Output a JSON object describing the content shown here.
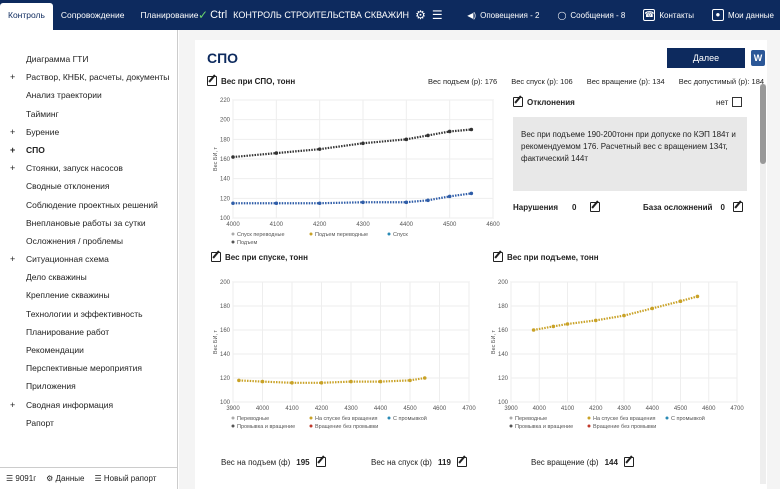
{
  "topbar": {
    "tabs": [
      "Контроль",
      "Сопровождение",
      "Планирование"
    ],
    "brand_logo": "Ctrl",
    "brand_title": "КОНТРОЛЬ СТРОИТЕЛЬСТВА СКВАЖИН",
    "alerts": "Оповещения - 2",
    "messages": "Сообщения - 8",
    "contacts": "Контакты",
    "profile": "Мои данные"
  },
  "sidebar": {
    "items": [
      {
        "label": "Диаграмма ГТИ",
        "plus": ""
      },
      {
        "label": "Раствор, КНБК, расчеты, документы",
        "plus": "+"
      },
      {
        "label": "Анализ траектории",
        "plus": ""
      },
      {
        "label": "Тайминг",
        "plus": ""
      },
      {
        "label": "Бурение",
        "plus": "+"
      },
      {
        "label": "СПО",
        "plus": "+"
      },
      {
        "label": "Стоянки, запуск насосов",
        "plus": "+"
      },
      {
        "label": "Сводные отклонения",
        "plus": ""
      },
      {
        "label": "Соблюдение проектных решений",
        "plus": ""
      },
      {
        "label": "Внеплановые работы за сутки",
        "plus": ""
      },
      {
        "label": "Осложнения / проблемы",
        "plus": ""
      },
      {
        "label": "Ситуационная схема",
        "plus": "+"
      },
      {
        "label": "Дело скважины",
        "plus": ""
      },
      {
        "label": "Крепление скважины",
        "plus": ""
      },
      {
        "label": "Технологии и эффективность",
        "plus": ""
      },
      {
        "label": "Планирование работ",
        "plus": ""
      },
      {
        "label": "Рекомендации",
        "plus": ""
      },
      {
        "label": "Перспективные мероприятия",
        "plus": ""
      },
      {
        "label": "Приложения",
        "plus": ""
      },
      {
        "label": "Сводная информация",
        "plus": "+"
      },
      {
        "label": "Рапорт",
        "plus": ""
      }
    ],
    "footer": {
      "well": "9091г",
      "data": "Данные",
      "report": "Новый рапорт"
    }
  },
  "main": {
    "title": "СПО",
    "next_button": "Далее",
    "word_icon": "W",
    "chart1_title": "Вес при СПО, тонн",
    "weights": [
      "Вес подъем (р): 176",
      "Вес спуск (р): 106",
      "Вес вращение (р): 134",
      "Вес допустимый (р): 184"
    ],
    "deviations_title": "Отклонения",
    "deviations_no": "нет",
    "deviations_text": "Вес при подъеме 190-200тонн при допуске по КЭП 184т и рекомендуемом 176. Расчетный вес с вращением 134т, фактический 144т",
    "violations_label": "Нарушения",
    "violations_value": "0",
    "base_label": "База осложнений",
    "base_value": "0",
    "chart2_title": "Вес при спуске, тонн",
    "chart3_title": "Вес при подъеме, тонн",
    "fact_up_label": "Вес на подъем (ф)",
    "fact_up_value": "195",
    "fact_down_label": "Вес на спуск (ф)",
    "fact_down_value": "119",
    "fact_rot_label": "Вес вращение (ф)",
    "fact_rot_value": "144"
  },
  "chart_data": [
    {
      "type": "scatter",
      "title": "Вес при СПО, тонн",
      "ylabel": "Вес БИ, т",
      "xlim": [
        4000,
        4600
      ],
      "ylim": [
        100,
        220
      ],
      "xticks": [
        4000,
        4100,
        4200,
        4300,
        4400,
        4500,
        4600
      ],
      "yticks": [
        100,
        120,
        140,
        160,
        180,
        200,
        220
      ],
      "legend": [
        "Спуск переводные",
        "Подъем переводные",
        "Спуск",
        "Подъем"
      ],
      "series": [
        {
          "name": "Подъем",
          "color": "#333333",
          "x": [
            4000,
            4100,
            4200,
            4300,
            4400,
            4450,
            4500,
            4550
          ],
          "y": [
            162,
            166,
            170,
            176,
            180,
            184,
            188,
            190
          ]
        },
        {
          "name": "Спуск",
          "color": "#2f5da8",
          "x": [
            4000,
            4100,
            4200,
            4300,
            4400,
            4450,
            4500,
            4550
          ],
          "y": [
            115,
            115,
            115,
            116,
            116,
            118,
            122,
            125
          ]
        }
      ]
    },
    {
      "type": "scatter",
      "title": "Вес при спуске, тонн",
      "ylabel": "Вес БИ, т",
      "xlim": [
        3900,
        4700
      ],
      "ylim": [
        100,
        200
      ],
      "xticks": [
        3900,
        4000,
        4100,
        4200,
        4300,
        4400,
        4500,
        4600,
        4700
      ],
      "yticks": [
        100,
        120,
        140,
        160,
        180,
        200
      ],
      "legend": [
        "Переводные",
        "На спуске без вращения",
        "С промывкой",
        "Промывка и вращение",
        "Вращение без промывки"
      ],
      "series": [
        {
          "name": "На спуске без вращения",
          "color": "#c9a227",
          "x": [
            3920,
            4000,
            4100,
            4200,
            4300,
            4400,
            4500,
            4550
          ],
          "y": [
            118,
            117,
            116,
            116,
            117,
            117,
            118,
            120
          ]
        }
      ]
    },
    {
      "type": "scatter",
      "title": "Вес при подъеме, тонн",
      "ylabel": "Вес БИ, т",
      "xlim": [
        3900,
        4700
      ],
      "ylim": [
        100,
        200
      ],
      "xticks": [
        3900,
        4000,
        4100,
        4200,
        4300,
        4400,
        4500,
        4600,
        4700
      ],
      "yticks": [
        100,
        120,
        140,
        160,
        180,
        200
      ],
      "legend": [
        "Переводные",
        "На спуске без вращения",
        "С промывкой",
        "Промывка и вращение",
        "Вращение без промывки"
      ],
      "series": [
        {
          "name": "На спуске без вращения",
          "color": "#c9a227",
          "x": [
            3980,
            4050,
            4100,
            4200,
            4300,
            4400,
            4500,
            4560
          ],
          "y": [
            160,
            163,
            165,
            168,
            172,
            178,
            184,
            188
          ]
        }
      ]
    }
  ]
}
